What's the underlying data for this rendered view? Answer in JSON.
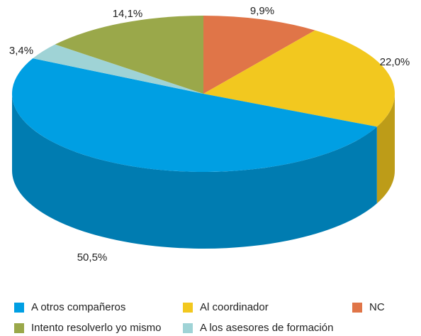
{
  "chart_data": {
    "type": "pie",
    "categories": [
      "A otros compañeros",
      "Al coordinador",
      "NC",
      "Intento resolverlo yo mismo",
      "A los asesores de formación"
    ],
    "values": [
      50.5,
      22.0,
      9.9,
      14.1,
      3.4
    ],
    "value_labels": [
      "50,5%",
      "22,0%",
      "9,9%",
      "14,1%",
      "3,4%"
    ],
    "colors": [
      "#009fe3",
      "#f2c81f",
      "#e07548",
      "#9aa84a",
      "#9fd3d6"
    ],
    "legend": "bottom"
  }
}
